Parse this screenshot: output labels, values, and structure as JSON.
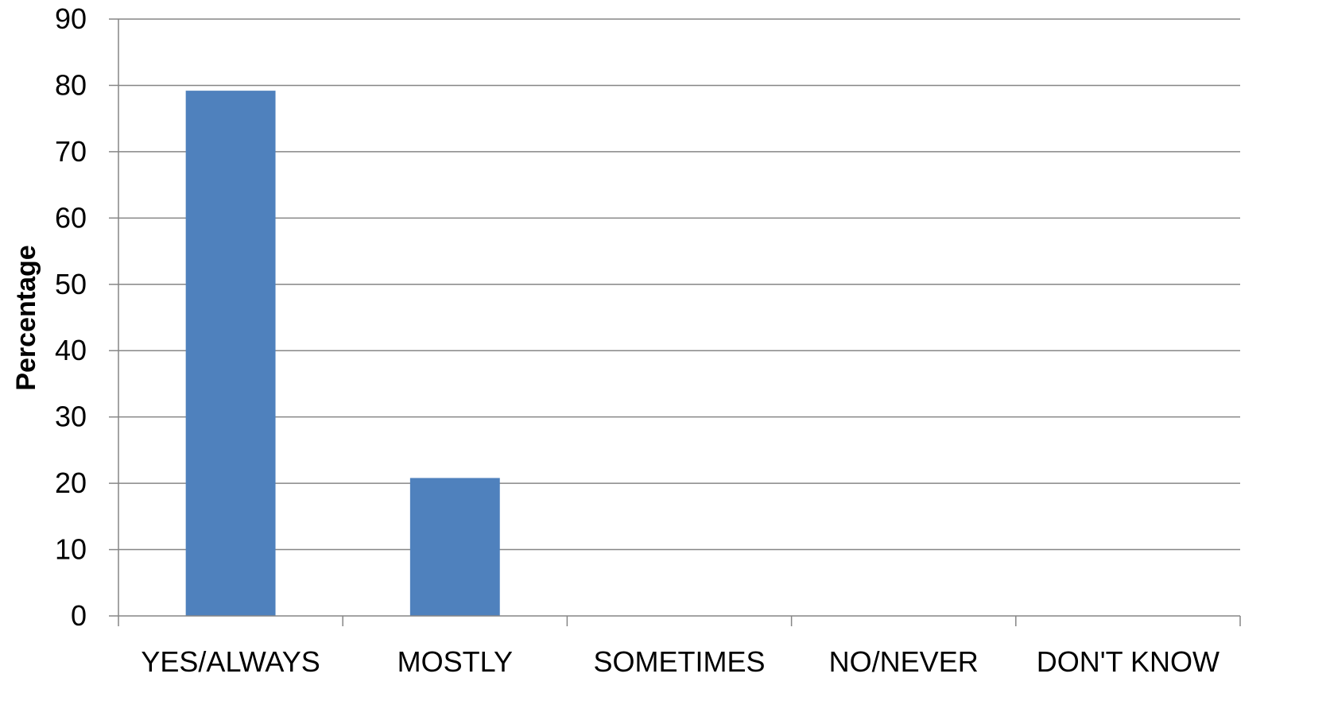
{
  "chart_data": {
    "type": "bar",
    "categories": [
      "YES/ALWAYS",
      "MOSTLY",
      "SOMETIMES",
      "NO/NEVER",
      "DON'T KNOW"
    ],
    "values": [
      79.2,
      20.8,
      0,
      0,
      0
    ],
    "title": "",
    "xlabel": "",
    "ylabel": "Percentage",
    "ylim": [
      0,
      90
    ],
    "yticks": [
      "0",
      "10",
      "20",
      "30",
      "40",
      "50",
      "60",
      "70",
      "80",
      "90"
    ],
    "grid": true,
    "legend": "none",
    "bar_color": "#4F81BD",
    "grid_color": "#868686"
  }
}
